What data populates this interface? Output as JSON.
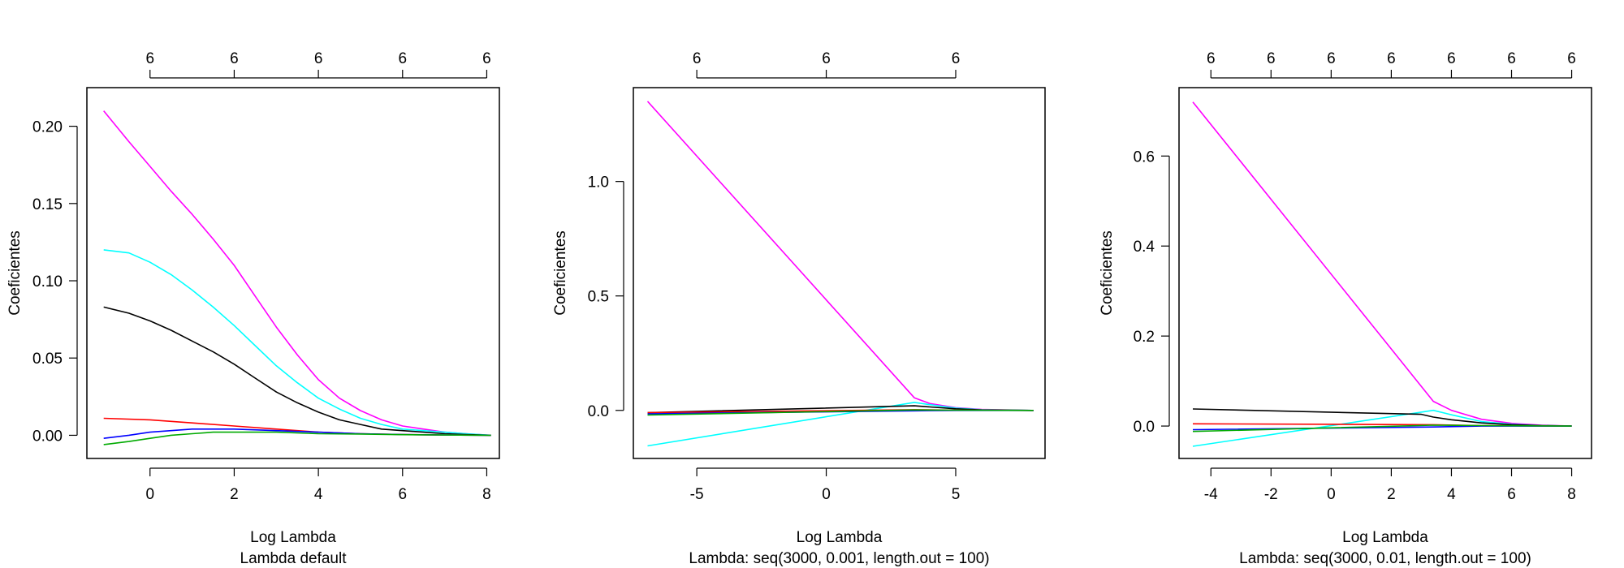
{
  "chart_data": [
    {
      "type": "line",
      "xlabel": "Log Lambda",
      "ylabel": "Coeficientes",
      "subtitle": "Lambda default",
      "xlim": [
        -1.5,
        8.3
      ],
      "ylim": [
        -0.015,
        0.225
      ],
      "xticks": [
        0,
        2,
        4,
        6,
        8
      ],
      "xtick_labels": [
        "0",
        "2",
        "4",
        "6",
        "8"
      ],
      "yticks": [
        0.0,
        0.05,
        0.1,
        0.15,
        0.2
      ],
      "ytick_labels": [
        "0.00",
        "0.05",
        "0.10",
        "0.15",
        "0.20"
      ],
      "top_ticks": [
        0,
        2,
        4,
        6,
        8
      ],
      "top_labels": [
        "6",
        "6",
        "6",
        "6",
        "6"
      ],
      "series": [
        {
          "color": "#ff00ff",
          "x": [
            -1.1,
            -0.5,
            0,
            0.5,
            1,
            1.5,
            2,
            2.5,
            3,
            3.5,
            4,
            4.5,
            5,
            5.5,
            6,
            6.5,
            7,
            7.5,
            8.1
          ],
          "y": [
            0.21,
            0.19,
            0.174,
            0.158,
            0.143,
            0.127,
            0.11,
            0.09,
            0.07,
            0.052,
            0.036,
            0.024,
            0.016,
            0.01,
            0.006,
            0.004,
            0.002,
            0.001,
            0.0
          ]
        },
        {
          "color": "#00ffff",
          "x": [
            -1.1,
            -0.5,
            0,
            0.5,
            1,
            1.5,
            2,
            2.5,
            3,
            3.5,
            4,
            4.5,
            5,
            5.5,
            6,
            6.5,
            7,
            7.5,
            8.1
          ],
          "y": [
            0.12,
            0.118,
            0.112,
            0.104,
            0.094,
            0.083,
            0.071,
            0.058,
            0.045,
            0.034,
            0.024,
            0.017,
            0.011,
            0.007,
            0.004,
            0.003,
            0.002,
            0.001,
            0.0
          ]
        },
        {
          "color": "#000000",
          "x": [
            -1.1,
            -0.5,
            0,
            0.5,
            1,
            1.5,
            2,
            2.5,
            3,
            3.5,
            4,
            4.5,
            5,
            5.5,
            6,
            6.5,
            7,
            7.5,
            8.1
          ],
          "y": [
            0.083,
            0.079,
            0.074,
            0.068,
            0.061,
            0.054,
            0.046,
            0.037,
            0.028,
            0.021,
            0.015,
            0.01,
            0.007,
            0.004,
            0.003,
            0.002,
            0.001,
            0.0005,
            0.0
          ]
        },
        {
          "color": "#ff0000",
          "x": [
            -1.1,
            0,
            1,
            2,
            3,
            4,
            5,
            6,
            7,
            8.1
          ],
          "y": [
            0.011,
            0.01,
            0.008,
            0.006,
            0.004,
            0.002,
            0.001,
            0.0005,
            0.0002,
            0.0
          ]
        },
        {
          "color": "#0000ff",
          "x": [
            -1.1,
            -0.5,
            0,
            0.5,
            1,
            2,
            3,
            4,
            5,
            6,
            7,
            8.1
          ],
          "y": [
            -0.002,
            0.0,
            0.002,
            0.003,
            0.004,
            0.004,
            0.003,
            0.002,
            0.001,
            0.0005,
            0.0002,
            0.0
          ]
        },
        {
          "color": "#00aa00",
          "x": [
            -1.1,
            -0.5,
            0,
            0.5,
            1,
            1.5,
            2,
            3,
            4,
            5,
            6,
            7,
            8.1
          ],
          "y": [
            -0.006,
            -0.004,
            -0.002,
            0.0,
            0.001,
            0.002,
            0.002,
            0.002,
            0.001,
            0.0008,
            0.0004,
            0.0002,
            0.0
          ]
        }
      ]
    },
    {
      "type": "line",
      "xlabel": "Log Lambda",
      "ylabel": "Coeficientes",
      "subtitle": "Lambda: seq(3000, 0.001, length.out = 100)",
      "xlim": [
        -7.45,
        8.45
      ],
      "ylim": [
        -0.21,
        1.41
      ],
      "xticks": [
        -5,
        0,
        5
      ],
      "xtick_labels": [
        "-5",
        "0",
        "5"
      ],
      "yticks": [
        0.0,
        0.5,
        1.0
      ],
      "ytick_labels": [
        "0.0",
        "0.5",
        "1.0"
      ],
      "top_ticks": [
        -5,
        0,
        5
      ],
      "top_labels": [
        "6",
        "6",
        "6"
      ],
      "series": [
        {
          "color": "#ff00ff",
          "x": [
            -6.9,
            3.4,
            4,
            5,
            6,
            8
          ],
          "y": [
            1.35,
            0.055,
            0.03,
            0.012,
            0.004,
            0.0
          ]
        },
        {
          "color": "#00ffff",
          "x": [
            -6.9,
            3.4,
            4,
            5,
            6,
            8
          ],
          "y": [
            -0.155,
            0.035,
            0.025,
            0.01,
            0.003,
            0.0
          ]
        },
        {
          "color": "#000000",
          "x": [
            -6.9,
            3.4,
            4,
            5,
            6,
            8
          ],
          "y": [
            -0.01,
            0.02,
            0.015,
            0.007,
            0.002,
            0.0
          ]
        },
        {
          "color": "#ff0000",
          "x": [
            -6.9,
            3.4,
            5,
            8
          ],
          "y": [
            -0.01,
            0.003,
            0.001,
            0.0
          ]
        },
        {
          "color": "#0000ff",
          "x": [
            -6.9,
            3.4,
            5,
            8
          ],
          "y": [
            -0.015,
            -0.002,
            0.0,
            0.0
          ]
        },
        {
          "color": "#00aa00",
          "x": [
            -6.9,
            3.4,
            5,
            8
          ],
          "y": [
            -0.02,
            0.002,
            0.001,
            0.0
          ]
        }
      ]
    },
    {
      "type": "line",
      "xlabel": "Log Lambda",
      "ylabel": "Coeficientes",
      "subtitle": "Lambda: seq(3000, 0.01, length.out = 100)",
      "xlim": [
        -5.06,
        8.66
      ],
      "ylim": [
        -0.072,
        0.752
      ],
      "xticks": [
        -4,
        -2,
        0,
        2,
        4,
        6,
        8
      ],
      "xtick_labels": [
        "-4",
        "-2",
        "0",
        "2",
        "4",
        "6",
        "8"
      ],
      "yticks": [
        0.0,
        0.2,
        0.4,
        0.6
      ],
      "ytick_labels": [
        "0.0",
        "0.2",
        "0.4",
        "0.6"
      ],
      "top_ticks": [
        -4,
        -2,
        0,
        2,
        4,
        6,
        8
      ],
      "top_labels": [
        "6",
        "6",
        "6",
        "6",
        "6",
        "6",
        "6"
      ],
      "series": [
        {
          "color": "#ff00ff",
          "x": [
            -4.6,
            3.4,
            4,
            5,
            6,
            7,
            8
          ],
          "y": [
            0.72,
            0.055,
            0.035,
            0.015,
            0.006,
            0.002,
            0.0
          ]
        },
        {
          "color": "#00ffff",
          "x": [
            -4.6,
            3.4,
            4,
            5,
            6,
            7,
            8
          ],
          "y": [
            -0.045,
            0.035,
            0.025,
            0.01,
            0.004,
            0.001,
            0.0
          ]
        },
        {
          "color": "#000000",
          "x": [
            -4.6,
            3.0,
            3.4,
            4,
            5,
            6,
            7,
            8
          ],
          "y": [
            0.038,
            0.026,
            0.02,
            0.014,
            0.007,
            0.003,
            0.001,
            0.0
          ]
        },
        {
          "color": "#ff0000",
          "x": [
            -4.6,
            3.4,
            5,
            8
          ],
          "y": [
            0.005,
            0.003,
            0.001,
            0.0
          ]
        },
        {
          "color": "#0000ff",
          "x": [
            -4.6,
            3.4,
            5,
            8
          ],
          "y": [
            -0.008,
            -0.002,
            0.0,
            0.0
          ]
        },
        {
          "color": "#00aa00",
          "x": [
            -4.6,
            3.4,
            5,
            8
          ],
          "y": [
            -0.012,
            0.002,
            0.001,
            0.0
          ]
        }
      ]
    }
  ]
}
